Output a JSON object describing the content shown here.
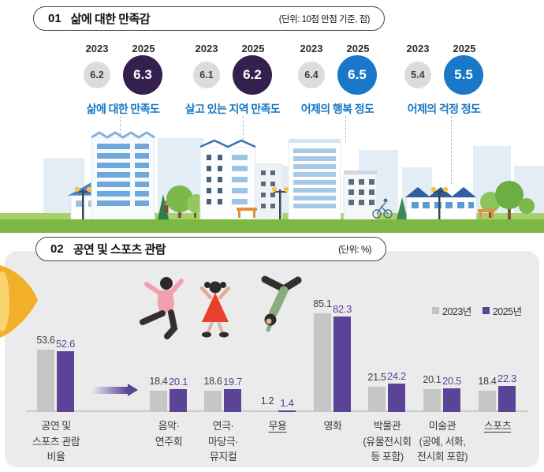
{
  "section1": {
    "number": "01",
    "title": "삶에 대한 만족감",
    "unit": "(단위: 10점 만점 기준, 점)",
    "groups": [
      {
        "year_left": "2023",
        "year_right": "2025",
        "prev": "6.2",
        "curr": "6.3",
        "label": "삶에 대한 만족도",
        "accent": "#34204e"
      },
      {
        "year_left": "2023",
        "year_right": "2025",
        "prev": "6.1",
        "curr": "6.2",
        "label": "살고 있는 지역 만족도",
        "accent": "#34204e"
      },
      {
        "year_left": "2023",
        "year_right": "2025",
        "prev": "6.4",
        "curr": "6.5",
        "label": "어제의 행복 정도",
        "accent": "#1979c8"
      },
      {
        "year_left": "2023",
        "year_right": "2025",
        "prev": "5.4",
        "curr": "5.5",
        "label": "어제의 걱정 정도",
        "accent": "#1979c8"
      }
    ]
  },
  "section2": {
    "number": "02",
    "title": "공연 및 스포츠 관람",
    "unit": "(단위: %)",
    "legend": [
      {
        "label": "2023년",
        "color": "#c3c3c3"
      },
      {
        "label": "2025년",
        "color": "#5b4397"
      }
    ],
    "cat_labels": [
      "공연 및\n스포츠 관람\n비율",
      "음악·\n연주회",
      "연극·\n마당극·\n뮤지컬",
      "무용",
      "영화",
      "박물관\n(유물전시회\n등 포함)",
      "미술관\n(공예, 서화,\n전시회 포함)",
      "스포츠"
    ]
  },
  "chart_data": [
    {
      "type": "table",
      "title": "삶에 대한 만족감",
      "unit": "10점 만점 기준, 점",
      "categories": [
        "삶에 대한 만족도",
        "살고 있는 지역 만족도",
        "어제의 행복 정도",
        "어제의 걱정 정도"
      ],
      "series": [
        {
          "name": "2023",
          "values": [
            6.2,
            6.1,
            6.4,
            5.4
          ]
        },
        {
          "name": "2025",
          "values": [
            6.3,
            6.2,
            6.5,
            5.5
          ]
        }
      ]
    },
    {
      "type": "bar",
      "title": "공연 및 스포츠 관람",
      "unit": "%",
      "categories": [
        "공연 및 스포츠 관람 비율",
        "음악·연주회",
        "연극·마당극·뮤지컬",
        "무용",
        "영화",
        "박물관(유물전시회 등 포함)",
        "미술관(공예, 서화, 전시회 포함)",
        "스포츠"
      ],
      "series": [
        {
          "name": "2023년",
          "color": "#c3c3c3",
          "values": [
            53.6,
            18.4,
            18.6,
            1.2,
            85.1,
            21.5,
            20.1,
            18.4
          ]
        },
        {
          "name": "2025년",
          "color": "#5b4397",
          "values": [
            52.6,
            20.1,
            19.7,
            1.4,
            82.3,
            24.2,
            20.5,
            22.3
          ]
        }
      ],
      "ylim": [
        0,
        100
      ],
      "grid": false,
      "legend_position": "top-right"
    }
  ]
}
